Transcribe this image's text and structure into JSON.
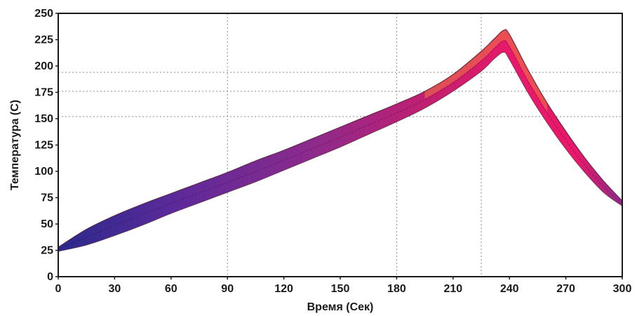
{
  "chart_data": {
    "type": "area",
    "title": "",
    "xlabel": "Время (Сек)",
    "ylabel": "Температура (C)",
    "xlim": [
      0,
      300
    ],
    "ylim": [
      0,
      250
    ],
    "x_ticks": [
      0,
      30,
      60,
      90,
      120,
      150,
      180,
      210,
      240,
      270,
      300
    ],
    "y_ticks": [
      0,
      25,
      50,
      75,
      100,
      125,
      150,
      175,
      200,
      225,
      250
    ],
    "grid": {
      "vertical_lines_x": [
        90,
        180,
        225
      ],
      "horizontal_lines_y": [
        152,
        176,
        194
      ],
      "style": "dotted"
    },
    "legend": "none",
    "band": {
      "x": [
        0,
        15,
        30,
        45,
        60,
        75,
        90,
        105,
        120,
        135,
        150,
        165,
        180,
        195,
        210,
        225,
        232,
        237,
        240,
        250,
        260,
        270,
        280,
        290,
        300
      ],
      "upper": [
        28,
        45,
        58,
        69,
        79,
        89,
        99,
        110,
        120,
        131,
        142,
        153,
        164,
        176,
        192,
        214,
        226,
        234,
        230,
        196,
        165,
        138,
        113,
        91,
        72
      ],
      "lower": [
        24,
        30,
        39,
        49,
        60,
        70,
        80,
        90,
        101,
        112,
        123,
        135,
        147,
        160,
        176,
        195,
        207,
        213,
        206,
        174,
        146,
        121,
        99,
        80,
        67
      ],
      "colors": [
        "#2a2a8c",
        "#5a2a9a",
        "#8c2a8c",
        "#c81e6e",
        "#e8196a",
        "#f07840"
      ]
    }
  }
}
